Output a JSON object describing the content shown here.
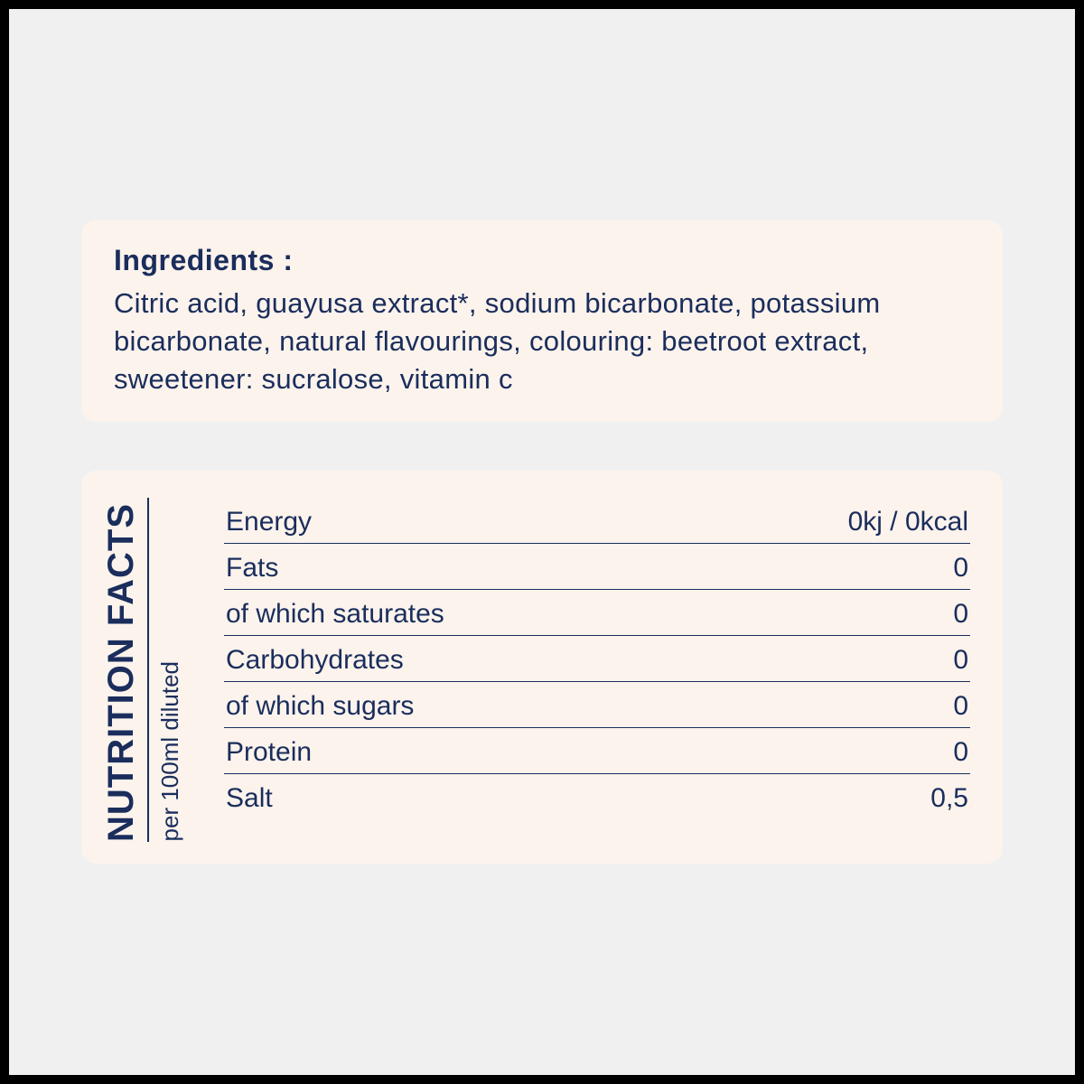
{
  "colors": {
    "page_bg": "#f0f0f0",
    "card_bg": "#fbf3ec",
    "text": "#1a2d5c",
    "border": "#000000",
    "rule": "#1a2d5c"
  },
  "ingredients": {
    "title": "Ingredients :",
    "text": "Citric acid, guayusa extract*, sodium bicarbonate, potassium bicarbonate, natural flavourings, colouring: beetroot extract, sweetener: sucralose, vitamin c"
  },
  "nutrition": {
    "heading": "NUTRITION FACTS",
    "subheading": "per 100ml diluted",
    "rows": [
      {
        "label": "Energy",
        "value": "0kj / 0kcal"
      },
      {
        "label": "Fats",
        "value": "0"
      },
      {
        "label": "of which saturates",
        "value": "0"
      },
      {
        "label": "Carbohydrates",
        "value": "0"
      },
      {
        "label": "of which sugars",
        "value": "0"
      },
      {
        "label": "Protein",
        "value": "0"
      },
      {
        "label": "Salt",
        "value": "0,5"
      }
    ]
  }
}
